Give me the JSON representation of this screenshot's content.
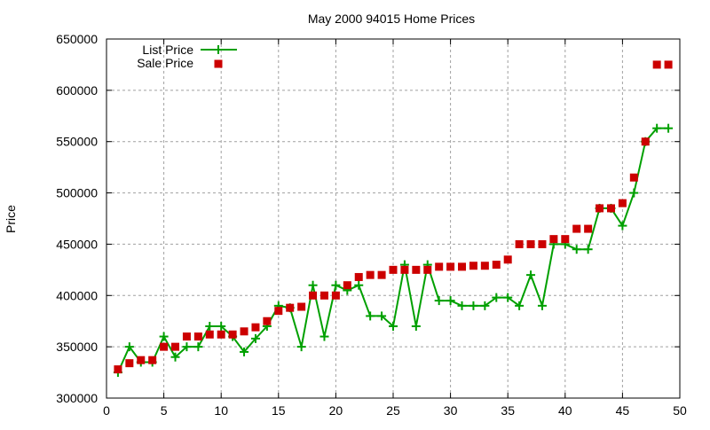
{
  "chart_data": {
    "type": "line",
    "title": "May 2000 94015 Home Prices",
    "xlabel": "",
    "ylabel": "Price",
    "xlim": [
      0,
      50
    ],
    "ylim": [
      300000,
      650000
    ],
    "xticks": [
      0,
      5,
      10,
      15,
      20,
      25,
      30,
      35,
      40,
      45,
      50
    ],
    "yticks": [
      300000,
      350000,
      400000,
      450000,
      500000,
      550000,
      600000,
      650000
    ],
    "grid": true,
    "legend_position": "top-left",
    "x": [
      1,
      2,
      3,
      4,
      5,
      6,
      7,
      8,
      9,
      10,
      11,
      12,
      13,
      14,
      15,
      16,
      17,
      18,
      19,
      20,
      21,
      22,
      23,
      24,
      25,
      26,
      27,
      28,
      29,
      30,
      31,
      32,
      33,
      34,
      35,
      36,
      37,
      38,
      39,
      40,
      41,
      42,
      43,
      44,
      45,
      46,
      47,
      48,
      49
    ],
    "series": [
      {
        "name": "List Price",
        "style": "linespoints",
        "color": "#00a000",
        "values": [
          325000,
          350000,
          335000,
          335000,
          360000,
          340000,
          350000,
          350000,
          370000,
          370000,
          360000,
          345000,
          358000,
          370000,
          390000,
          388000,
          350000,
          410000,
          360000,
          410000,
          405000,
          410000,
          380000,
          380000,
          370000,
          430000,
          370000,
          430000,
          395000,
          395000,
          390000,
          390000,
          390000,
          398000,
          398000,
          390000,
          420000,
          390000,
          450000,
          450000,
          445000,
          445000,
          485000,
          485000,
          468000,
          500000,
          550000,
          563000,
          563000
        ]
      },
      {
        "name": "Sale Price",
        "style": "points",
        "color": "#cc0000",
        "values": [
          328000,
          334000,
          337000,
          337000,
          350000,
          350000,
          360000,
          360000,
          362000,
          362000,
          362000,
          365000,
          369000,
          375000,
          385000,
          388000,
          389000,
          400000,
          400000,
          400000,
          410000,
          418000,
          420000,
          420000,
          425000,
          425000,
          425000,
          425000,
          428000,
          428000,
          428000,
          429000,
          429000,
          430000,
          435000,
          450000,
          450000,
          450000,
          455000,
          455000,
          465000,
          465000,
          485000,
          485000,
          490000,
          515000,
          550000,
          625000,
          625000
        ]
      }
    ]
  }
}
